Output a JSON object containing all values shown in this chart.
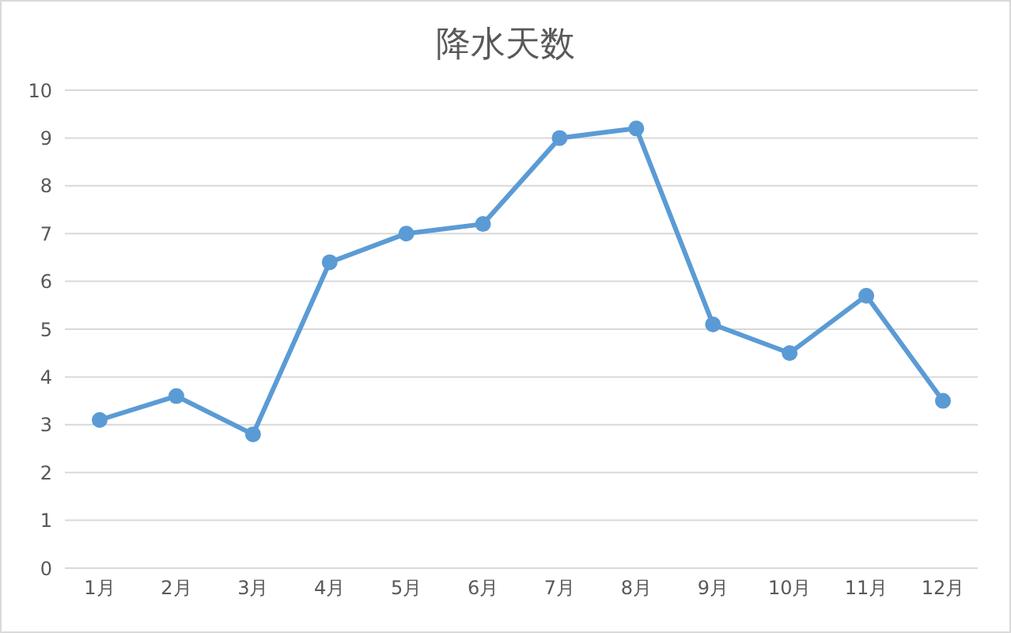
{
  "chart_data": {
    "type": "line",
    "title": "降水天数",
    "categories": [
      "1月",
      "2月",
      "3月",
      "4月",
      "5月",
      "6月",
      "7月",
      "8月",
      "9月",
      "10月",
      "11月",
      "12月"
    ],
    "series": [
      {
        "color": "#5b9bd5",
        "values": [
          3.1,
          3.6,
          2.8,
          6.4,
          7.0,
          7.2,
          9.0,
          9.2,
          5.1,
          4.5,
          5.7,
          3.5
        ]
      }
    ],
    "ylim": [
      0,
      10
    ],
    "yticks": [
      0,
      1,
      2,
      3,
      4,
      5,
      6,
      7,
      8,
      9,
      10
    ],
    "grid": "y",
    "marker": "circle",
    "line_style": "solid"
  }
}
